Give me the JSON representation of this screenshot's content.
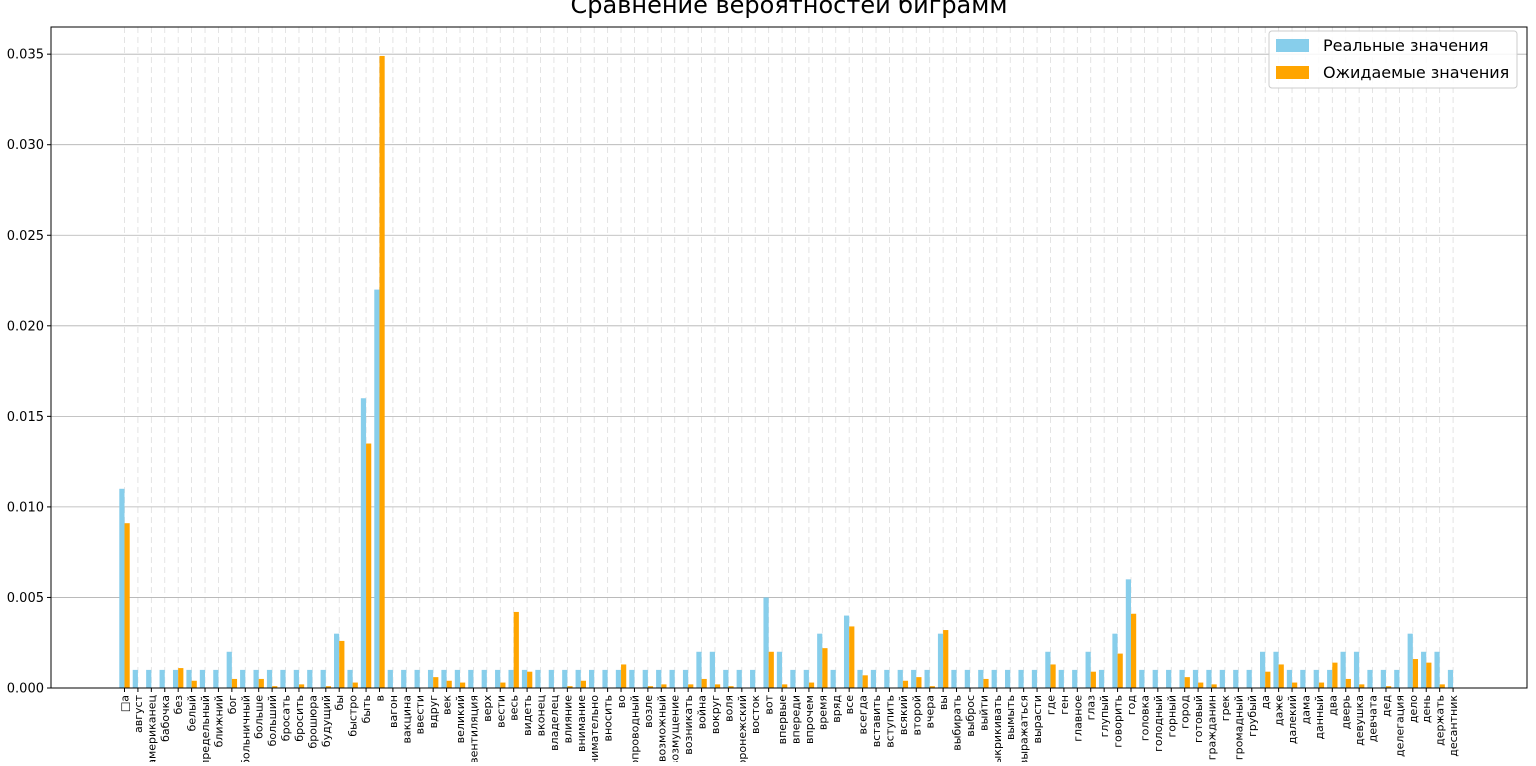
{
  "chart_data": {
    "type": "bar",
    "title": "Сравнение вероятностей биграмм",
    "xlabel": "",
    "ylabel": "",
    "ylim": [
      0,
      0.0365
    ],
    "yticks": [
      0.0,
      0.005,
      0.01,
      0.015,
      0.02,
      0.025,
      0.03,
      0.035
    ],
    "ytick_labels": [
      "0.000",
      "0.005",
      "0.010",
      "0.015",
      "0.020",
      "0.025",
      "0.030",
      "0.035"
    ],
    "grid_y": true,
    "grid_x": "dashed",
    "legend_position": "top-right",
    "categories": [
      "□а",
      "август",
      "американец",
      "бабочка",
      "без",
      "белый",
      "беспредельный",
      "ближний",
      "бог",
      "больничный",
      "больше",
      "больший",
      "бросать",
      "бросить",
      "брошюра",
      "будущий",
      "бы",
      "быстро",
      "быть",
      "в",
      "вагон",
      "вакцина",
      "ввести",
      "вдруг",
      "век",
      "великий",
      "вентиляция",
      "верх",
      "вести",
      "весь",
      "видеть",
      "вконец",
      "владелец",
      "влияние",
      "внимание",
      "внимательно",
      "вносить",
      "во",
      "водопроводный",
      "возле",
      "возможный",
      "возмущение",
      "возникать",
      "война",
      "вокруг",
      "воля",
      "воронежский",
      "восток",
      "вот",
      "впервые",
      "впереди",
      "впрочем",
      "время",
      "вряд",
      "все",
      "всегда",
      "вставить",
      "вступить",
      "всякий",
      "второй",
      "вчера",
      "вы",
      "выбирать",
      "выброс",
      "выйти",
      "выкрикивать",
      "вымыть",
      "выражаться",
      "вырасти",
      "где",
      "ген",
      "главное",
      "глаз",
      "глупый",
      "говорить",
      "год",
      "головка",
      "голодный",
      "горный",
      "город",
      "готовый",
      "гражданин",
      "грек",
      "громадный",
      "грубый",
      "да",
      "даже",
      "далекий",
      "дама",
      "данный",
      "два",
      "дверь",
      "девушка",
      "девчата",
      "дед",
      "делегация",
      "дело",
      "день",
      "держать",
      "десантник"
    ],
    "series": [
      {
        "name": "Реальные значения",
        "color": "#87ceeb",
        "values": [
          0.011,
          0.001,
          0.001,
          0.001,
          0.001,
          0.001,
          0.001,
          0.001,
          0.002,
          0.001,
          0.001,
          0.001,
          0.001,
          0.001,
          0.001,
          0.001,
          0.003,
          0.001,
          0.016,
          0.022,
          0.001,
          0.001,
          0.001,
          0.001,
          0.001,
          0.001,
          0.001,
          0.001,
          0.001,
          0.001,
          0.001,
          0.001,
          0.001,
          0.001,
          0.001,
          0.001,
          0.001,
          0.001,
          0.001,
          0.001,
          0.001,
          0.001,
          0.001,
          0.002,
          0.002,
          0.001,
          0.001,
          0.001,
          0.005,
          0.002,
          0.001,
          0.001,
          0.003,
          0.001,
          0.004,
          0.001,
          0.001,
          0.001,
          0.001,
          0.001,
          0.001,
          0.003,
          0.001,
          0.001,
          0.001,
          0.001,
          0.001,
          0.001,
          0.001,
          0.002,
          0.001,
          0.001,
          0.002,
          0.001,
          0.003,
          0.006,
          0.001,
          0.001,
          0.001,
          0.001,
          0.001,
          0.001,
          0.001,
          0.001,
          0.001,
          0.002,
          0.002,
          0.001,
          0.001,
          0.001,
          0.001,
          0.002,
          0.002,
          0.001,
          0.001,
          0.001,
          0.003,
          0.002,
          0.002,
          0.001
        ]
      },
      {
        "name": "Ожидаемые значения",
        "color": "#ffa500",
        "values": [
          0.0091,
          0.0,
          0.0,
          0.0,
          0.0011,
          0.0004,
          0.0,
          0.0,
          0.0005,
          0.0,
          0.0005,
          0.0001,
          0.0,
          0.0002,
          0.0,
          0.0001,
          0.0026,
          0.0003,
          0.0135,
          0.0349,
          0.0,
          0.0,
          0.0,
          0.0006,
          0.0004,
          0.0003,
          0.0,
          0.0,
          0.0003,
          0.0042,
          0.0009,
          0.0,
          0.0,
          0.0001,
          0.0004,
          0.0,
          0.0,
          0.0013,
          0.0,
          0.0001,
          0.0002,
          0.0,
          0.0002,
          0.0005,
          0.0002,
          0.0001,
          0.0,
          0.0,
          0.002,
          0.0002,
          0.0,
          0.0003,
          0.0022,
          0.0,
          0.0034,
          0.0007,
          0.0,
          0.0,
          0.0004,
          0.0006,
          0.0001,
          0.0032,
          0.0,
          0.0,
          0.0005,
          0.0,
          0.0,
          0.0,
          0.0,
          0.0013,
          0.0,
          0.0,
          0.0009,
          0.0,
          0.0019,
          0.0041,
          0.0,
          0.0,
          0.0,
          0.0006,
          0.0003,
          0.0002,
          0.0,
          0.0,
          0.0,
          0.0009,
          0.0013,
          0.0003,
          0.0,
          0.0003,
          0.0014,
          0.0005,
          0.0002,
          0.0,
          0.0001,
          0.0,
          0.0016,
          0.0014,
          0.0002,
          0.0
        ]
      }
    ]
  }
}
